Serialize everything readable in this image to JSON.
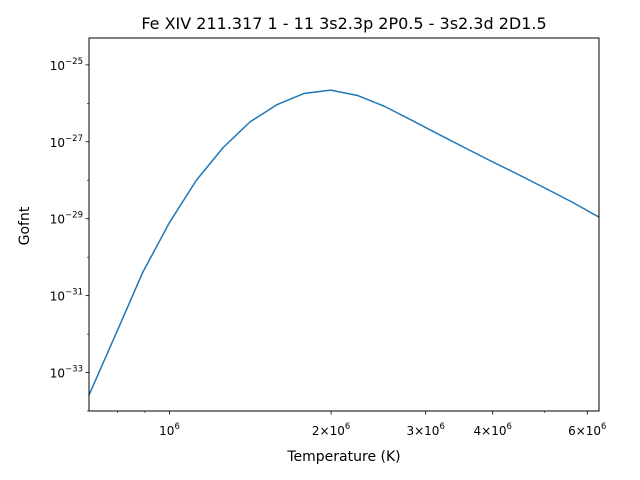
{
  "chart_data": {
    "type": "line",
    "title": "Fe XIV     211.317    1 -   11 3s2.3p 2P0.5 - 3s2.3d 2D1.5",
    "xlabel": "Temperature (K)",
    "ylabel": "Gofnt",
    "xscale": "log",
    "yscale": "log",
    "xlim": [
      707946,
      6309573
    ],
    "ylim": [
      1e-34,
      5e-25
    ],
    "grid": false,
    "x_ticks": [
      {
        "value": 1000000,
        "base": "10",
        "exp": "6"
      },
      {
        "value": 2000000,
        "base": "2×10",
        "exp": "6"
      },
      {
        "value": 3000000,
        "base": "3×10",
        "exp": "6"
      },
      {
        "value": 4000000,
        "base": "4×10",
        "exp": "6"
      },
      {
        "value": 6000000,
        "base": "6×10",
        "exp": "6"
      }
    ],
    "x_minor_ticks": [
      800000,
      900000,
      5000000
    ],
    "y_ticks": [
      {
        "value": 1e-25,
        "base": "10",
        "exp": "−25"
      },
      {
        "value": 1e-27,
        "base": "10",
        "exp": "−27"
      },
      {
        "value": 1e-29,
        "base": "10",
        "exp": "−29"
      },
      {
        "value": 1e-31,
        "base": "10",
        "exp": "−31"
      },
      {
        "value": 1e-33,
        "base": "10",
        "exp": "−33"
      }
    ],
    "series": [
      {
        "color": "#1f77b4",
        "x": [
          707946,
          794328,
          891251,
          1000000,
          1122018,
          1258925,
          1412538,
          1584893,
          1778279,
          1995262,
          2238721,
          2511886,
          2818383,
          3162278,
          3548134,
          3981072,
          4466836,
          5011872,
          5623413,
          6309573
        ],
        "y": [
          2.6e-34,
          1e-32,
          4e-31,
          8e-30,
          1e-28,
          7.1e-28,
          3.3e-27,
          9.2e-27,
          1.8e-26,
          2.2e-26,
          1.6e-26,
          8.4e-27,
          3.7e-27,
          1.6e-27,
          7e-28,
          3.1e-28,
          1.4e-28,
          6.2e-29,
          2.7e-29,
          1.1e-29
        ]
      }
    ]
  }
}
